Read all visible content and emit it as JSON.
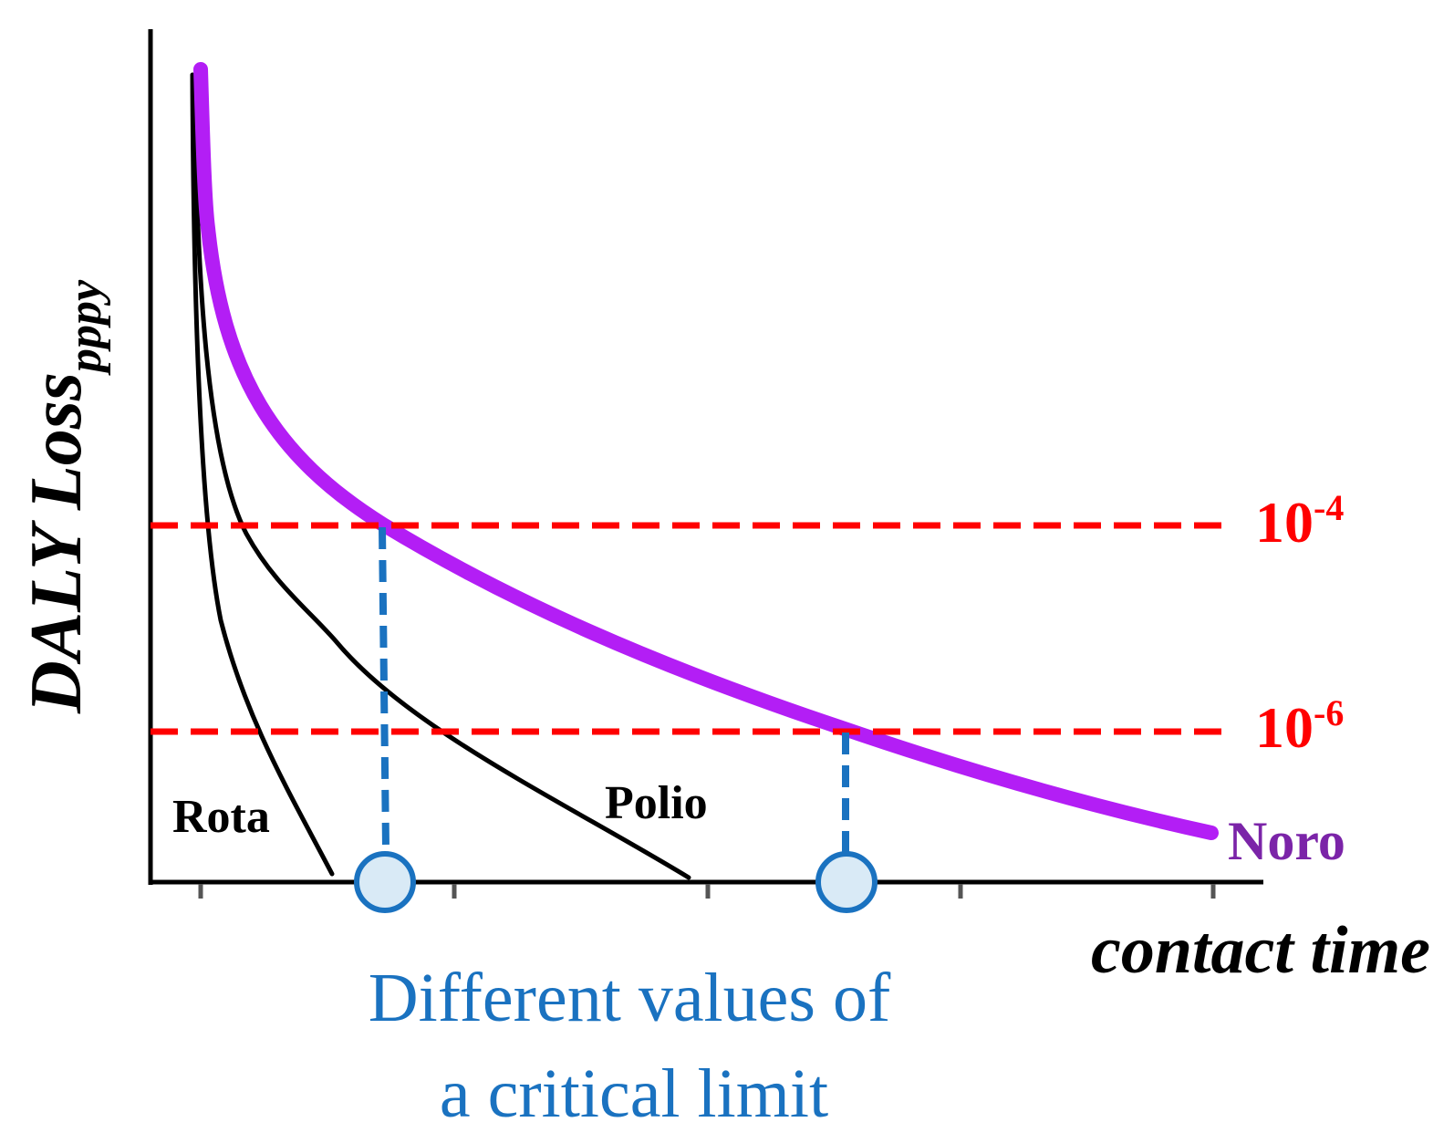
{
  "y_axis": {
    "label": "DALY Loss",
    "subscript": "pppy"
  },
  "x_axis": {
    "label": "contact time"
  },
  "thresholds": [
    {
      "base": "10",
      "exponent": "-4"
    },
    {
      "base": "10",
      "exponent": "-6"
    }
  ],
  "curves": {
    "rota": {
      "label": "Rota"
    },
    "polio": {
      "label": "Polio"
    },
    "noro": {
      "label": "Noro"
    }
  },
  "caption": {
    "line1": "Different values of",
    "line2": "a critical limit"
  },
  "colors": {
    "axis": "#000000",
    "threshold": "#ff0000",
    "noro_curve": "#b31ef5",
    "noro_label": "#7b24a8",
    "critical_limit": "#1a72c0",
    "marker_fill": "#d9eaf6"
  }
}
